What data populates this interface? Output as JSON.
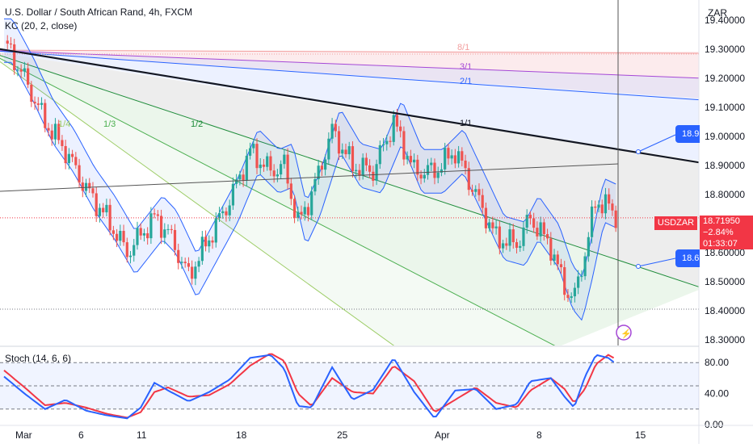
{
  "header": {
    "title": "U.S. Dollar / South African Rand, 4h, FXCM",
    "indicator": "KC (20, 2, close)",
    "stoch_label": "Stoch (14, 6, 6)",
    "currency": "ZAR"
  },
  "price_badge": {
    "symbol": "USDZAR",
    "price": "18.71950",
    "change": "−2.84%",
    "countdown": "01:33:07"
  },
  "markers": {
    "upper": "18.9",
    "lower": "18.6"
  },
  "colors": {
    "up": "#26a69a",
    "down": "#ef5350",
    "keltner": "#2962ff",
    "stoch_k": "#2962ff",
    "stoch_d": "#f23645",
    "trendline": "#131722",
    "last_price": "#f23645"
  },
  "chart_data": [
    {
      "type": "candlestick",
      "timeframe": "4h",
      "y_range": [
        18.28,
        19.47
      ],
      "y_ticks": [
        "19.40000",
        "19.30000",
        "19.20000",
        "19.10000",
        "19.00000",
        "18.90000",
        "18.80000",
        "18.70000",
        "18.60000",
        "18.50000",
        "18.40000",
        "18.30000"
      ],
      "x_ticks": [
        "Mar",
        "6",
        "11",
        "18",
        "25",
        "Apr",
        "8",
        "15"
      ],
      "last_price": 18.7195,
      "fan_labels": [
        "8/1",
        "3/1",
        "2/1",
        "1/1",
        "1/2",
        "1/3",
        "1/4"
      ],
      "close_path": [
        {
          "day": 0,
          "close": 19.33
        },
        {
          "day": 1.5,
          "close": 19.2
        },
        {
          "day": 3,
          "close": 19.05
        },
        {
          "day": 4.5,
          "close": 18.95
        },
        {
          "day": 6,
          "close": 18.82
        },
        {
          "day": 7.5,
          "close": 18.72
        },
        {
          "day": 9,
          "close": 18.6
        },
        {
          "day": 10,
          "close": 18.66
        },
        {
          "day": 11,
          "close": 18.72
        },
        {
          "day": 12,
          "close": 18.67
        },
        {
          "day": 13.5,
          "close": 18.52
        },
        {
          "day": 15,
          "close": 18.65
        },
        {
          "day": 16.5,
          "close": 18.78
        },
        {
          "day": 18,
          "close": 18.95
        },
        {
          "day": 19.5,
          "close": 18.88
        },
        {
          "day": 20.5,
          "close": 18.9
        },
        {
          "day": 21.5,
          "close": 18.7
        },
        {
          "day": 22.5,
          "close": 18.8
        },
        {
          "day": 24,
          "close": 19.02
        },
        {
          "day": 25.5,
          "close": 18.9
        },
        {
          "day": 27,
          "close": 18.88
        },
        {
          "day": 28.5,
          "close": 19.05
        },
        {
          "day": 30,
          "close": 18.88
        },
        {
          "day": 31.5,
          "close": 18.88
        },
        {
          "day": 33,
          "close": 18.95
        },
        {
          "day": 34.5,
          "close": 18.8
        },
        {
          "day": 36,
          "close": 18.65
        },
        {
          "day": 37.5,
          "close": 18.63
        },
        {
          "day": 38.5,
          "close": 18.72
        },
        {
          "day": 40,
          "close": 18.62
        },
        {
          "day": 41,
          "close": 18.48
        },
        {
          "day": 41.7,
          "close": 18.44
        },
        {
          "day": 42.5,
          "close": 18.6
        },
        {
          "day": 43.3,
          "close": 18.78
        },
        {
          "day": 44.2,
          "close": 18.76
        },
        {
          "day": 44.8,
          "close": 18.72
        }
      ]
    },
    {
      "type": "line",
      "name": "Stoch (14, 6, 6)",
      "y_range": [
        0,
        100
      ],
      "y_ticks": [
        "80.00",
        "40.00",
        "0.00"
      ],
      "levels": [
        80,
        50,
        20
      ],
      "k_path": [
        {
          "day": 0,
          "value": 62
        },
        {
          "day": 1.5,
          "value": 40
        },
        {
          "day": 3,
          "value": 20
        },
        {
          "day": 4.5,
          "value": 32
        },
        {
          "day": 6,
          "value": 18
        },
        {
          "day": 7.5,
          "value": 12
        },
        {
          "day": 9,
          "value": 8
        },
        {
          "day": 10,
          "value": 22
        },
        {
          "day": 11,
          "value": 54
        },
        {
          "day": 12,
          "value": 44
        },
        {
          "day": 13.5,
          "value": 30
        },
        {
          "day": 15,
          "value": 42
        },
        {
          "day": 16.5,
          "value": 58
        },
        {
          "day": 18,
          "value": 86
        },
        {
          "day": 19.5,
          "value": 90
        },
        {
          "day": 20.5,
          "value": 72
        },
        {
          "day": 21.5,
          "value": 24
        },
        {
          "day": 22.5,
          "value": 22
        },
        {
          "day": 24,
          "value": 74
        },
        {
          "day": 25.5,
          "value": 32
        },
        {
          "day": 27,
          "value": 45
        },
        {
          "day": 28.5,
          "value": 86
        },
        {
          "day": 30,
          "value": 42
        },
        {
          "day": 31.5,
          "value": 8
        },
        {
          "day": 33,
          "value": 44
        },
        {
          "day": 34.5,
          "value": 46
        },
        {
          "day": 36,
          "value": 20
        },
        {
          "day": 37.5,
          "value": 26
        },
        {
          "day": 38.5,
          "value": 56
        },
        {
          "day": 40,
          "value": 60
        },
        {
          "day": 41,
          "value": 36
        },
        {
          "day": 41.7,
          "value": 22
        },
        {
          "day": 42.5,
          "value": 62
        },
        {
          "day": 43.3,
          "value": 90
        },
        {
          "day": 44.2,
          "value": 86
        },
        {
          "day": 44.8,
          "value": 78
        }
      ],
      "d_path": [
        {
          "day": 0,
          "value": 70
        },
        {
          "day": 1.5,
          "value": 48
        },
        {
          "day": 3,
          "value": 25
        },
        {
          "day": 4.5,
          "value": 28
        },
        {
          "day": 6,
          "value": 22
        },
        {
          "day": 7.5,
          "value": 14
        },
        {
          "day": 9,
          "value": 9
        },
        {
          "day": 10,
          "value": 16
        },
        {
          "day": 11,
          "value": 42
        },
        {
          "day": 12,
          "value": 48
        },
        {
          "day": 13.5,
          "value": 36
        },
        {
          "day": 15,
          "value": 38
        },
        {
          "day": 16.5,
          "value": 52
        },
        {
          "day": 18,
          "value": 76
        },
        {
          "day": 19.5,
          "value": 92
        },
        {
          "day": 20.5,
          "value": 82
        },
        {
          "day": 21.5,
          "value": 40
        },
        {
          "day": 22.5,
          "value": 24
        },
        {
          "day": 24,
          "value": 60
        },
        {
          "day": 25.5,
          "value": 42
        },
        {
          "day": 27,
          "value": 40
        },
        {
          "day": 28.5,
          "value": 76
        },
        {
          "day": 30,
          "value": 56
        },
        {
          "day": 31.5,
          "value": 16
        },
        {
          "day": 33,
          "value": 32
        },
        {
          "day": 34.5,
          "value": 48
        },
        {
          "day": 36,
          "value": 28
        },
        {
          "day": 37.5,
          "value": 22
        },
        {
          "day": 38.5,
          "value": 44
        },
        {
          "day": 40,
          "value": 60
        },
        {
          "day": 41,
          "value": 46
        },
        {
          "day": 41.7,
          "value": 28
        },
        {
          "day": 42.5,
          "value": 46
        },
        {
          "day": 43.3,
          "value": 78
        },
        {
          "day": 44.2,
          "value": 90
        },
        {
          "day": 44.8,
          "value": 84
        }
      ]
    }
  ]
}
